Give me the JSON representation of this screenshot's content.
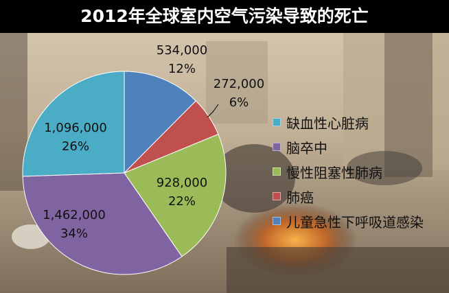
{
  "title": "2012年全球室内空气污染导致的死亡",
  "colors": {
    "title_bar": "#000000",
    "background_sky": "#c9b9a0",
    "background_ground": "#8a7a66"
  },
  "chart_data": {
    "type": "pie",
    "title": "2012年全球室内空气污染导致的死亡",
    "start_angle_deg": 0,
    "direction": "clockwise",
    "legend_position": "right",
    "slices": [
      {
        "label": "儿童急性下呼吸道感染",
        "value": 534000,
        "value_label": "534,000",
        "percent_label": "12%",
        "color": "#4f81bd"
      },
      {
        "label": "肺癌",
        "value": 272000,
        "value_label": "272,000",
        "percent_label": "6%",
        "color": "#c0504d"
      },
      {
        "label": "慢性阻塞性肺病",
        "value": 928000,
        "value_label": "928,000",
        "percent_label": "22%",
        "color": "#9bbb59"
      },
      {
        "label": "脑卒中",
        "value": 1462000,
        "value_label": "1,462,000",
        "percent_label": "34%",
        "color": "#8064a2"
      },
      {
        "label": "缺血性心脏病",
        "value": 1096000,
        "value_label": "1,096,000",
        "percent_label": "26%",
        "color": "#4bacc6"
      }
    ],
    "legend_order": [
      "缺血性心脏病",
      "脑卒中",
      "慢性阻塞性肺病",
      "肺癌",
      "儿童急性下呼吸道感染"
    ]
  }
}
